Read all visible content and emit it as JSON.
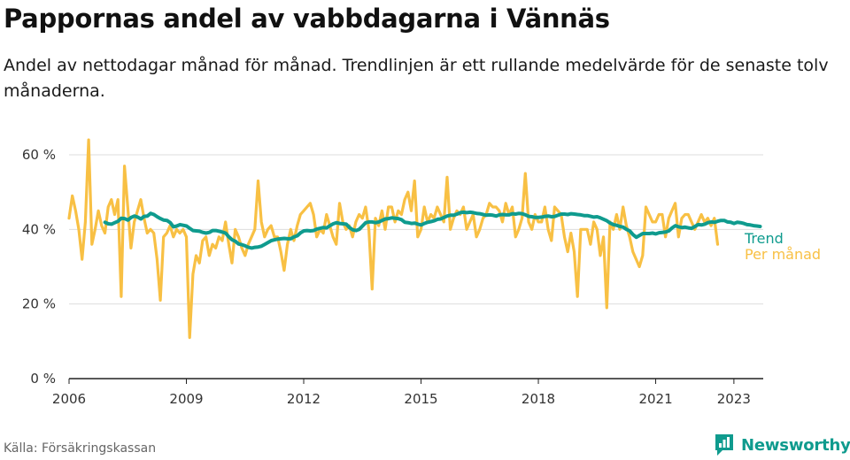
{
  "title": "Pappornas andel av vabbdagarna i Vännäs",
  "subtitle": "Andel av nettodagar månad för månad. Trendlinjen är ett rullande medelvärde för de senaste tolv månaderna.",
  "source": "Källa: Försäkringskassan",
  "brand": {
    "name": "Newsworthy",
    "icon": "newsworthy-logo-icon"
  },
  "colors": {
    "monthly": "#f8c044",
    "trend": "#0f9b8e",
    "grid": "#dddddd",
    "axis": "#222222"
  },
  "chart_data": {
    "type": "line",
    "xlim": [
      2006.0,
      2023.75
    ],
    "ylim": [
      0,
      60
    ],
    "grid": true,
    "legend": "right, at line ends",
    "x_tick_labels": [
      "2006",
      "2009",
      "2012",
      "2015",
      "2018",
      "2021",
      "2023"
    ],
    "x_tick_values": [
      2006,
      2009,
      2012,
      2015,
      2018,
      2021,
      2023
    ],
    "y_tick_labels": [
      "0 %",
      "20 %",
      "40 %",
      "60 %"
    ],
    "y_tick_values": [
      0,
      20,
      40,
      60
    ],
    "series": [
      {
        "name": "Per månad",
        "x_start": 2006.0,
        "x_step": 0.0833333,
        "values": [
          43,
          49,
          45,
          40,
          32,
          42,
          64,
          36,
          40,
          45,
          41,
          39,
          46,
          48,
          44,
          48,
          22,
          57,
          46,
          35,
          42,
          45,
          48,
          43,
          39,
          40,
          39,
          32,
          21,
          38,
          39,
          41,
          38,
          40,
          39,
          40,
          38,
          11,
          28,
          33,
          31,
          37,
          38,
          33,
          36,
          35,
          38,
          37,
          42,
          36,
          31,
          40,
          38,
          35,
          33,
          36,
          38,
          40,
          53,
          42,
          38,
          40,
          41,
          38,
          38,
          34,
          29,
          36,
          40,
          37,
          41,
          44,
          45,
          46,
          47,
          44,
          38,
          40,
          39,
          44,
          41,
          38,
          36,
          47,
          42,
          40,
          41,
          38,
          42,
          44,
          43,
          46,
          40,
          24,
          43,
          41,
          45,
          40,
          46,
          46,
          42,
          45,
          44,
          48,
          50,
          45,
          53,
          38,
          40,
          46,
          42,
          44,
          43,
          46,
          44,
          42,
          54,
          40,
          43,
          45,
          44,
          46,
          40,
          42,
          44,
          38,
          40,
          43,
          44,
          47,
          46,
          46,
          45,
          42,
          47,
          44,
          46,
          38,
          40,
          43,
          55,
          42,
          40,
          44,
          42,
          42,
          46,
          40,
          37,
          46,
          45,
          44,
          38,
          34,
          39,
          34,
          22,
          40,
          40,
          40,
          36,
          42,
          40,
          33,
          38,
          19,
          42,
          40,
          44,
          40,
          46,
          41,
          38,
          34,
          32,
          30,
          33,
          46,
          44,
          42,
          42,
          44,
          44,
          38,
          43,
          45,
          47,
          38,
          43,
          44,
          44,
          42,
          40,
          42,
          44,
          42,
          43,
          41,
          43,
          36
        ]
      },
      {
        "name": "Trend",
        "x_start": 2006.92,
        "x_step": 0.0833333,
        "values": [
          41.9,
          41.5,
          41.4,
          41.8,
          42.2,
          43.0,
          42.9,
          42.5,
          43.2,
          43.6,
          43.3,
          42.8,
          43.5,
          43.6,
          44.3,
          44.0,
          43.4,
          42.9,
          42.5,
          42.4,
          41.8,
          40.7,
          40.9,
          41.3,
          41.1,
          40.9,
          40.3,
          39.7,
          39.6,
          39.5,
          39.2,
          39.0,
          39.2,
          39.7,
          39.7,
          39.5,
          39.3,
          39.0,
          38.0,
          37.2,
          36.8,
          36.1,
          35.9,
          35.6,
          35.2,
          35.0,
          35.2,
          35.3,
          35.5,
          36.0,
          36.5,
          37.0,
          37.2,
          37.4,
          37.5,
          37.6,
          37.5,
          37.5,
          38.0,
          38.3,
          39.1,
          39.6,
          39.7,
          39.6,
          39.7,
          40.1,
          40.3,
          40.5,
          40.4,
          41.0,
          41.5,
          41.8,
          41.6,
          41.5,
          41.4,
          40.5,
          39.9,
          39.7,
          40.0,
          40.9,
          41.8,
          42.0,
          42.0,
          41.8,
          42.0,
          42.4,
          42.8,
          42.9,
          43.1,
          43.0,
          42.9,
          42.6,
          41.9,
          41.8,
          41.6,
          41.7,
          41.4,
          41.2,
          41.6,
          41.9,
          42.1,
          42.3,
          42.7,
          42.8,
          43.2,
          43.6,
          43.8,
          43.8,
          44.1,
          44.5,
          44.6,
          44.5,
          44.6,
          44.5,
          44.3,
          44.2,
          44.0,
          43.8,
          43.9,
          43.8,
          43.6,
          43.9,
          44.0,
          43.9,
          43.9,
          44.2,
          44.1,
          44.3,
          44.2,
          43.9,
          43.5,
          43.4,
          43.2,
          43.2,
          43.3,
          43.5,
          43.6,
          43.4,
          43.5,
          43.8,
          44.1,
          44.1,
          44.0,
          44.2,
          44.1,
          44.0,
          43.9,
          43.7,
          43.7,
          43.5,
          43.3,
          43.4,
          43.1,
          42.7,
          42.3,
          41.7,
          41.3,
          41.1,
          40.8,
          40.6,
          40.0,
          39.6,
          38.6,
          37.9,
          38.4,
          38.9,
          38.9,
          38.9,
          39.0,
          38.8,
          39.1,
          39.2,
          39.3,
          39.6,
          40.4,
          41.0,
          40.7,
          40.5,
          40.6,
          40.4,
          40.3,
          40.8,
          41.3,
          41.2,
          41.4,
          41.8,
          42.0,
          41.9,
          42.2,
          42.4,
          42.4,
          42.0,
          41.9,
          41.6,
          41.9,
          41.8,
          41.6,
          41.3,
          41.2,
          41.0,
          40.9,
          40.8
        ]
      }
    ]
  }
}
